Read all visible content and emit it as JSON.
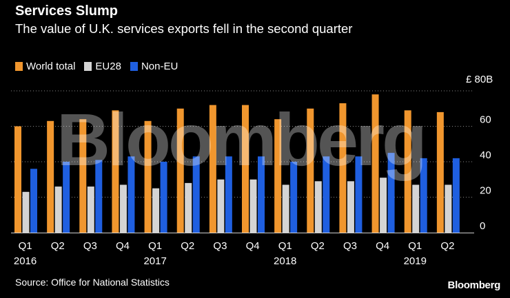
{
  "header": {
    "title": "Services Slump",
    "subtitle": "The value of U.K. services exports fell in the second quarter"
  },
  "legend": [
    {
      "label": "World total",
      "color": "#f0962e"
    },
    {
      "label": "EU28",
      "color": "#d4d4d4"
    },
    {
      "label": "Non-EU",
      "color": "#1f5fe0"
    }
  ],
  "footer": {
    "source": "Source: Office for National Statistics",
    "brand": "Bloomberg"
  },
  "watermark": "Bloomberg",
  "chart_data": {
    "type": "bar",
    "title": "Services Slump",
    "ylabel": "",
    "y_unit_label": "£ 80B",
    "ylim": [
      0,
      80
    ],
    "yticks": [
      0,
      20,
      40,
      60
    ],
    "grid": true,
    "categories": [
      "Q1 2016",
      "Q2 2016",
      "Q3 2016",
      "Q4 2016",
      "Q1 2017",
      "Q2 2017",
      "Q3 2017",
      "Q4 2017",
      "Q1 2018",
      "Q2 2018",
      "Q3 2018",
      "Q4 2018",
      "Q1 2019",
      "Q2 2019"
    ],
    "x_quarter_labels": [
      "Q1",
      "Q2",
      "Q3",
      "Q4",
      "Q1",
      "Q2",
      "Q3",
      "Q4",
      "Q1",
      "Q2",
      "Q3",
      "Q4",
      "Q1",
      "Q2"
    ],
    "x_year_labels": [
      {
        "index": 0,
        "label": "2016"
      },
      {
        "index": 4,
        "label": "2017"
      },
      {
        "index": 8,
        "label": "2018"
      },
      {
        "index": 12,
        "label": "2019"
      }
    ],
    "series": [
      {
        "name": "World total",
        "color": "#f0962e",
        "values": [
          60,
          63,
          64,
          69,
          63,
          70,
          72,
          72,
          64,
          70,
          73,
          78,
          69,
          68
        ]
      },
      {
        "name": "EU28",
        "color": "#d4d4d4",
        "values": [
          23,
          26,
          26,
          27,
          25,
          28,
          30,
          30,
          27,
          29,
          29,
          31,
          27,
          27
        ]
      },
      {
        "name": "Non-EU",
        "color": "#1f5fe0",
        "values": [
          36,
          40,
          41,
          43,
          40,
          43,
          43,
          43,
          40,
          43,
          43,
          45,
          42,
          42
        ]
      }
    ]
  }
}
